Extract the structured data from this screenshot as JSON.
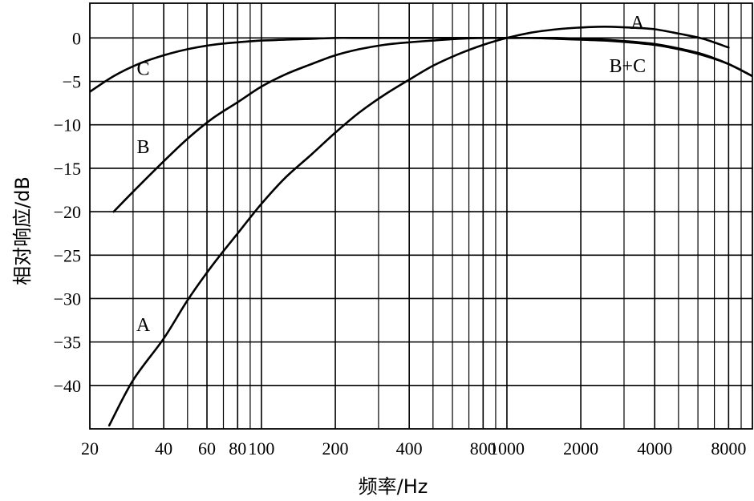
{
  "chart_data": {
    "type": "line",
    "title": "",
    "xlabel": "频率/Hz",
    "ylabel": "相对响应/dB",
    "x_scale": "log",
    "xlim": [
      20,
      10000
    ],
    "ylim": [
      -45,
      4
    ],
    "x_ticks": [
      20,
      40,
      60,
      80,
      100,
      200,
      400,
      800,
      1000,
      2000,
      4000,
      8000
    ],
    "x_tick_labels": [
      "20",
      "40",
      "60",
      "80",
      "100",
      "200",
      "400",
      "800",
      "1000",
      "2000",
      "4000",
      "8000"
    ],
    "y_ticks": [
      0,
      -5,
      -10,
      -15,
      -20,
      -25,
      -30,
      -35,
      -40
    ],
    "y_tick_labels": [
      "0",
      "−5",
      "−10",
      "−15",
      "−20",
      "−25",
      "−30",
      "−35",
      "−40"
    ],
    "grid": true,
    "series": [
      {
        "name": "A",
        "x": [
          24,
          30,
          40,
          50,
          63,
          80,
          100,
          125,
          160,
          200,
          250,
          315,
          400,
          500,
          630,
          800,
          1000,
          1250,
          1600,
          2000,
          2500,
          3150,
          4000,
          5000,
          6300,
          8000
        ],
        "y": [
          -44.6,
          -39.4,
          -34.6,
          -30.2,
          -26.2,
          -22.5,
          -19.1,
          -16.1,
          -13.4,
          -10.9,
          -8.6,
          -6.6,
          -4.8,
          -3.2,
          -1.9,
          -0.8,
          0.0,
          0.6,
          1.0,
          1.2,
          1.3,
          1.2,
          1.0,
          0.5,
          -0.1,
          -1.1
        ]
      },
      {
        "name": "B",
        "x": [
          25,
          31.5,
          40,
          50,
          63,
          80,
          100,
          125,
          160,
          200,
          250,
          315,
          400,
          500,
          630,
          800,
          1000,
          1250,
          1600,
          2000,
          2500,
          3150,
          4000,
          5000,
          6300,
          8000,
          10000
        ],
        "y": [
          -20.0,
          -17.1,
          -14.2,
          -11.6,
          -9.3,
          -7.4,
          -5.6,
          -4.2,
          -3.0,
          -2.0,
          -1.3,
          -0.8,
          -0.5,
          -0.3,
          -0.1,
          0.0,
          0.0,
          0.0,
          0.0,
          -0.1,
          -0.2,
          -0.4,
          -0.7,
          -1.2,
          -1.9,
          -3.0,
          -4.4
        ]
      },
      {
        "name": "C",
        "x": [
          20,
          25,
          31.5,
          40,
          50,
          63,
          80,
          100,
          125,
          160,
          200,
          250,
          315,
          400,
          500,
          630,
          800,
          1000,
          1250,
          1600,
          2000,
          2500,
          3150,
          4000,
          5000,
          6300,
          8000,
          10000
        ],
        "y": [
          -6.2,
          -4.4,
          -3.0,
          -2.0,
          -1.3,
          -0.8,
          -0.5,
          -0.3,
          -0.2,
          -0.1,
          0.0,
          0.0,
          0.0,
          0.0,
          0.0,
          0.0,
          0.0,
          0.0,
          0.0,
          -0.1,
          -0.2,
          -0.3,
          -0.5,
          -0.8,
          -1.3,
          -2.0,
          -3.0,
          -4.4
        ]
      }
    ],
    "annotations": [
      {
        "text": "C",
        "x": 33,
        "y": -3.5
      },
      {
        "text": "B",
        "x": 33,
        "y": -12.5
      },
      {
        "text": "A",
        "x": 33,
        "y": -33
      },
      {
        "text": "A",
        "x": 3400,
        "y": 1.8
      },
      {
        "text": "B+C",
        "x": 3100,
        "y": -3.2
      }
    ]
  }
}
